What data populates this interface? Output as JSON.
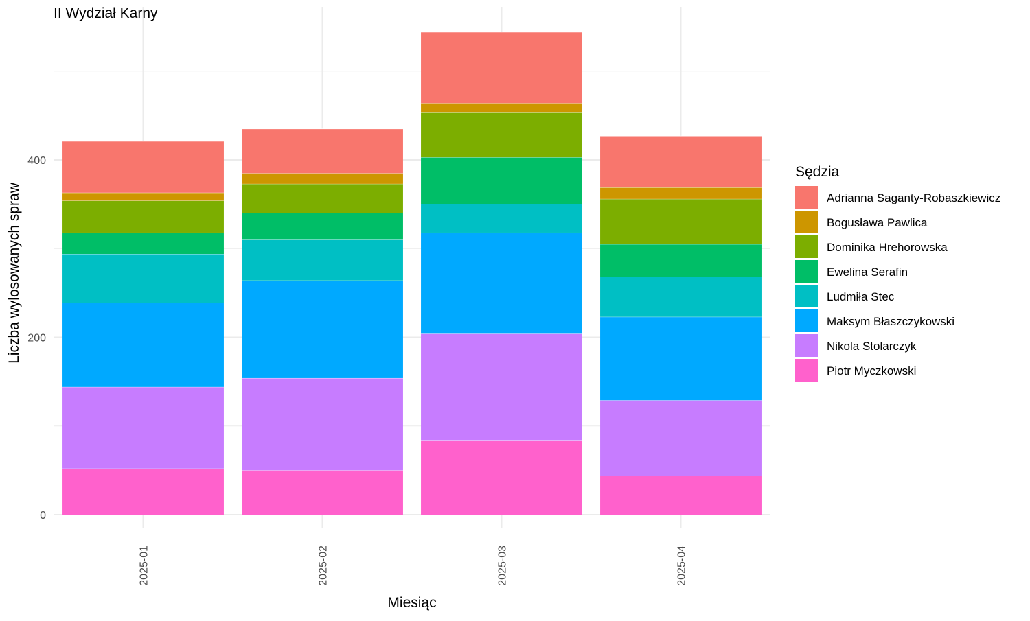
{
  "chart_data": {
    "type": "bar",
    "stacked": true,
    "title": "II Wydział Karny",
    "xlabel": "Miesiąc",
    "ylabel": "Liczba wylosowanych spraw",
    "ylim": [
      0,
      570
    ],
    "yticks": [
      0,
      200,
      400
    ],
    "grid": true,
    "legend_title": "Sędzia",
    "legend_position": "right",
    "categories": [
      "2025-01",
      "2025-02",
      "2025-03",
      "2025-04"
    ],
    "series": [
      {
        "name": "Piotr Myczkowski",
        "color": "#FF61CC",
        "values": [
          52,
          50,
          84,
          44
        ]
      },
      {
        "name": "Nikola Stolarczyk",
        "color": "#C77CFF",
        "values": [
          92,
          104,
          120,
          85
        ]
      },
      {
        "name": "Maksym Błaszczykowski",
        "color": "#00A9FF",
        "values": [
          95,
          110,
          114,
          94
        ]
      },
      {
        "name": "Ludmiła Stec",
        "color": "#00BFC4",
        "values": [
          55,
          46,
          32,
          45
        ]
      },
      {
        "name": "Ewelina Serafin",
        "color": "#00BE67",
        "values": [
          24,
          30,
          53,
          37
        ]
      },
      {
        "name": "Dominika Hrehorowska",
        "color": "#7CAE00",
        "values": [
          36,
          33,
          51,
          51
        ]
      },
      {
        "name": "Bogusława Pawlica",
        "color": "#CD9600",
        "values": [
          9,
          12,
          10,
          13
        ]
      },
      {
        "name": "Adrianna Saganty-Robaszkiewicz",
        "color": "#F8766D",
        "values": [
          58,
          50,
          80,
          58
        ]
      }
    ],
    "legend_order": [
      "Adrianna Saganty-Robaszkiewicz",
      "Bogusława Pawlica",
      "Dominika Hrehorowska",
      "Ewelina Serafin",
      "Ludmiła Stec",
      "Maksym Błaszczykowski",
      "Nikola Stolarczyk",
      "Piotr Myczkowski"
    ]
  }
}
